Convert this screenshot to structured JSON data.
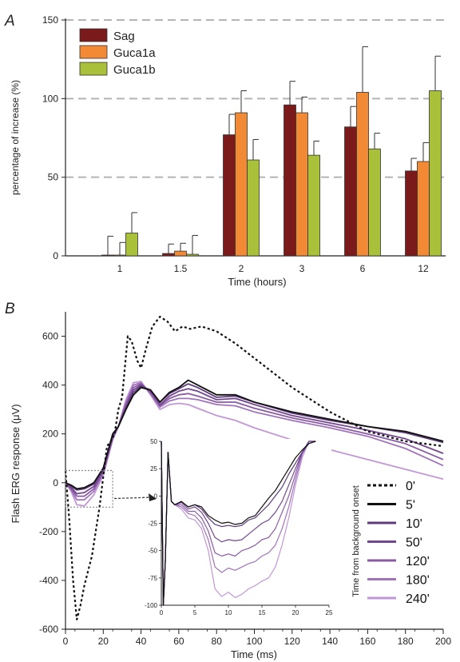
{
  "chart_data": [
    {
      "panel": "A",
      "type": "bar",
      "title": "",
      "xlabel": "Time (hours)",
      "ylabel": "percentage of increase (%)",
      "ylim": [
        0,
        150
      ],
      "yticks": [
        0,
        50,
        100,
        150
      ],
      "grid": true,
      "legend_position": "top-left",
      "categories": [
        "1",
        "1.5",
        "2",
        "3",
        "6",
        "12"
      ],
      "series": [
        {
          "name": "Sag",
          "color": "#7a1a1a",
          "values": [
            0.5,
            1.5,
            77,
            96,
            82,
            54
          ],
          "errors": [
            12,
            6,
            13,
            15,
            13,
            8
          ]
        },
        {
          "name": "Guca1a",
          "color": "#f28a35",
          "values": [
            0.5,
            3,
            91,
            91,
            104,
            60
          ],
          "errors": [
            8,
            5,
            14,
            10,
            29,
            12
          ]
        },
        {
          "name": "Guca1b",
          "color": "#a9c13a",
          "values": [
            14.5,
            1,
            61,
            64,
            68,
            105
          ],
          "errors": [
            13,
            12,
            13,
            9,
            10,
            22
          ]
        }
      ]
    },
    {
      "panel": "B",
      "type": "line",
      "title": "",
      "xlabel": "Time (ms)",
      "ylabel": "Flash ERG response (μV)",
      "xlim": [
        0,
        200
      ],
      "ylim": [
        -600,
        700
      ],
      "xticks": [
        0,
        20,
        40,
        60,
        80,
        100,
        120,
        140,
        160,
        180,
        200
      ],
      "yticks": [
        -600,
        -400,
        -200,
        0,
        200,
        400,
        600
      ],
      "legend_title": "Time from background onset",
      "legend_position": "bottom-right",
      "series": [
        {
          "name": "0'",
          "color": "#111111",
          "dashed": true,
          "x": [
            0,
            2,
            4,
            6,
            8,
            10,
            14,
            18,
            22,
            24,
            26,
            28,
            30,
            33,
            35,
            38,
            40,
            43,
            46,
            50,
            54,
            58,
            62,
            66,
            72,
            80,
            90,
            100,
            110,
            120,
            130,
            140,
            150,
            160,
            170,
            180,
            190,
            200
          ],
          "y": [
            50,
            -150,
            -400,
            -560,
            -500,
            -420,
            -300,
            -100,
            150,
            170,
            200,
            300,
            350,
            600,
            580,
            500,
            470,
            560,
            640,
            680,
            660,
            620,
            640,
            630,
            640,
            620,
            570,
            510,
            450,
            390,
            340,
            290,
            250,
            210,
            190,
            170,
            160,
            150
          ]
        },
        {
          "name": "5'",
          "color": "#111111",
          "dashed": false,
          "x": [
            0,
            3,
            6,
            10,
            15,
            20,
            25,
            28,
            32,
            36,
            40,
            45,
            50,
            55,
            60,
            65,
            70,
            80,
            90,
            100,
            120,
            140,
            160,
            180,
            200
          ],
          "y": [
            0,
            -10,
            -25,
            -20,
            0,
            60,
            200,
            230,
            300,
            360,
            390,
            380,
            330,
            370,
            390,
            420,
            400,
            360,
            360,
            330,
            290,
            260,
            230,
            210,
            170
          ]
        },
        {
          "name": "10'",
          "color": "#5e3c7b",
          "dashed": false,
          "x": [
            0,
            3,
            6,
            10,
            15,
            20,
            25,
            28,
            32,
            36,
            40,
            45,
            50,
            55,
            60,
            65,
            70,
            80,
            90,
            100,
            120,
            140,
            160,
            180,
            200
          ],
          "y": [
            0,
            -15,
            -30,
            -25,
            -5,
            55,
            195,
            230,
            305,
            370,
            395,
            380,
            330,
            365,
            385,
            405,
            390,
            350,
            355,
            330,
            285,
            255,
            230,
            205,
            165
          ]
        },
        {
          "name": "50'",
          "color": "#74468f",
          "dashed": false,
          "x": [
            0,
            3,
            6,
            10,
            15,
            20,
            25,
            28,
            32,
            36,
            40,
            45,
            50,
            55,
            60,
            65,
            70,
            80,
            90,
            100,
            120,
            140,
            160,
            180,
            200
          ],
          "y": [
            0,
            -20,
            -45,
            -40,
            -15,
            50,
            190,
            230,
            310,
            380,
            400,
            375,
            320,
            355,
            375,
            385,
            375,
            340,
            345,
            320,
            275,
            245,
            215,
            180,
            120
          ]
        },
        {
          "name": "120'",
          "color": "#8a5aa5",
          "dashed": false,
          "x": [
            0,
            3,
            6,
            10,
            15,
            20,
            25,
            28,
            32,
            36,
            40,
            45,
            50,
            55,
            60,
            65,
            70,
            80,
            90,
            100,
            120,
            140,
            160,
            180,
            200
          ],
          "y": [
            0,
            -25,
            -55,
            -55,
            -25,
            45,
            185,
            230,
            320,
            390,
            405,
            370,
            315,
            345,
            360,
            365,
            355,
            330,
            330,
            305,
            265,
            235,
            200,
            160,
            95
          ]
        },
        {
          "name": "180'",
          "color": "#a173bb",
          "dashed": false,
          "x": [
            0,
            3,
            6,
            10,
            15,
            20,
            25,
            28,
            32,
            36,
            40,
            45,
            50,
            55,
            60,
            65,
            70,
            80,
            90,
            100,
            120,
            140,
            160,
            180,
            200
          ],
          "y": [
            0,
            -30,
            -70,
            -70,
            -35,
            40,
            180,
            230,
            330,
            400,
            410,
            365,
            310,
            335,
            345,
            345,
            340,
            320,
            315,
            290,
            255,
            225,
            190,
            140,
            70
          ]
        },
        {
          "name": "240'",
          "color": "#c197d6",
          "dashed": false,
          "x": [
            0,
            3,
            6,
            10,
            15,
            20,
            25,
            28,
            32,
            36,
            40,
            45,
            50,
            55,
            60,
            65,
            70,
            80,
            90,
            100,
            120,
            140,
            160,
            180,
            200
          ],
          "y": [
            0,
            -35,
            -90,
            -95,
            -50,
            30,
            175,
            230,
            340,
            410,
            415,
            360,
            300,
            320,
            325,
            320,
            305,
            275,
            255,
            225,
            175,
            135,
            95,
            55,
            15
          ]
        }
      ],
      "inset": {
        "xlim": [
          0,
          25
        ],
        "ylim": [
          -100,
          50
        ],
        "xticks": [
          0,
          5,
          10,
          15,
          20,
          25
        ],
        "yticks": [
          50,
          25,
          0,
          -25,
          -50,
          -75,
          -100
        ],
        "x": [
          0,
          0.3,
          0.6,
          1,
          1.5,
          2,
          3,
          4,
          5,
          6,
          7,
          8,
          9,
          10,
          11,
          12,
          13,
          14,
          15,
          16,
          17,
          18,
          19,
          20,
          21,
          22,
          23
        ],
        "series": [
          {
            "name": "5'",
            "y": [
              50,
              -100,
              -60,
              40,
              -5,
              -8,
              -5,
              -10,
              -8,
              -10,
              -18,
              -22,
              -25,
              -24,
              -26,
              -25,
              -20,
              -18,
              -10,
              -2,
              5,
              15,
              25,
              35,
              42,
              48,
              50
            ]
          },
          {
            "name": "10'",
            "y": [
              50,
              -100,
              -60,
              40,
              -5,
              -8,
              -5,
              -10,
              -8,
              -12,
              -20,
              -26,
              -28,
              -27,
              -28,
              -27,
              -22,
              -20,
              -14,
              -8,
              0,
              8,
              20,
              30,
              40,
              48,
              50
            ]
          },
          {
            "name": "50'",
            "y": [
              50,
              -100,
              -60,
              40,
              -5,
              -8,
              -6,
              -12,
              -10,
              -15,
              -25,
              -38,
              -42,
              -40,
              -41,
              -40,
              -35,
              -30,
              -25,
              -22,
              -15,
              -5,
              10,
              25,
              40,
              50,
              50
            ]
          },
          {
            "name": "120'",
            "y": [
              50,
              -100,
              -60,
              40,
              -5,
              -8,
              -8,
              -14,
              -14,
              -20,
              -32,
              -52,
              -55,
              -53,
              -55,
              -50,
              -48,
              -45,
              -40,
              -38,
              -30,
              -15,
              0,
              20,
              40,
              50,
              50
            ]
          },
          {
            "name": "180'",
            "y": [
              50,
              -100,
              -60,
              40,
              -5,
              -8,
              -10,
              -16,
              -18,
              -25,
              -40,
              -65,
              -70,
              -66,
              -68,
              -65,
              -62,
              -60,
              -55,
              -52,
              -45,
              -30,
              -10,
              15,
              38,
              50,
              50
            ]
          },
          {
            "name": "240'",
            "y": [
              50,
              -100,
              -60,
              40,
              -5,
              -8,
              -12,
              -20,
              -22,
              -30,
              -50,
              -85,
              -92,
              -88,
              -93,
              -90,
              -85,
              -82,
              -78,
              -75,
              -65,
              -45,
              -20,
              10,
              35,
              50,
              50
            ]
          }
        ]
      }
    }
  ]
}
